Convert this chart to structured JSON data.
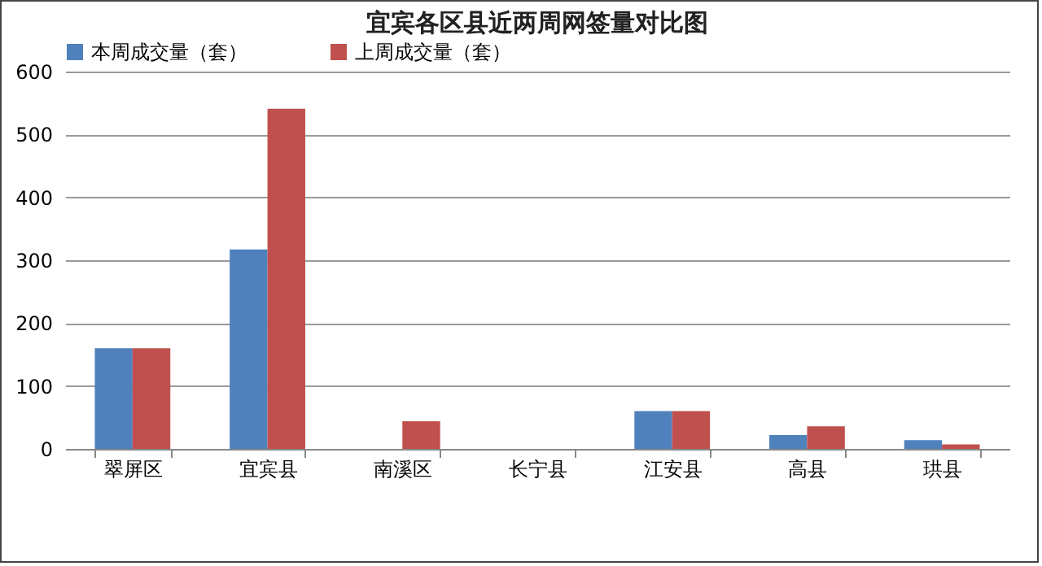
{
  "chart_data": {
    "type": "bar",
    "title": "宜宾各区县近两周网签量对比图",
    "categories": [
      "翠屏区",
      "宜宾县",
      "南溪区",
      "长宁县",
      "江安县",
      "高县",
      "珙县"
    ],
    "series": [
      {
        "name": "本周成交量（套）",
        "color": "#4f81bd",
        "values": [
          160,
          317,
          0,
          0,
          60,
          22,
          14
        ]
      },
      {
        "name": "上周成交量（套）",
        "color": "#c0504d",
        "values": [
          160,
          541,
          44,
          0,
          60,
          36,
          7
        ]
      }
    ],
    "ylim": [
      0,
      600
    ],
    "yticks": [
      0,
      100,
      200,
      300,
      400,
      500,
      600
    ],
    "grid": "y",
    "legend": "top"
  }
}
